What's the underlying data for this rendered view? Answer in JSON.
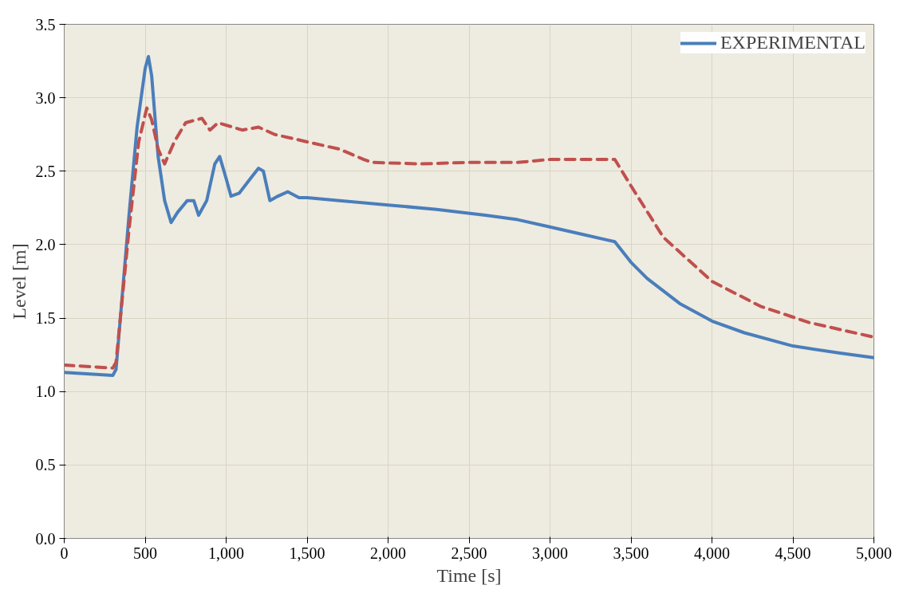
{
  "chart_data": {
    "type": "line",
    "xlabel": "Time [s]",
    "ylabel": "Level [m]",
    "xlim": [
      0,
      5000
    ],
    "xticks": [
      {
        "value": 0,
        "label": "0"
      },
      {
        "value": 500,
        "label": "500"
      },
      {
        "value": 1000,
        "label": "1,000"
      },
      {
        "value": 1500,
        "label": "1,500"
      },
      {
        "value": 2000,
        "label": "2,000"
      },
      {
        "value": 2500,
        "label": "2,500"
      },
      {
        "value": 3000,
        "label": "3,000"
      },
      {
        "value": 3500,
        "label": "3,500"
      },
      {
        "value": 4000,
        "label": "4,000"
      },
      {
        "value": 4500,
        "label": "4,500"
      },
      {
        "value": 5000,
        "label": "5,000"
      }
    ],
    "ylim": [
      0,
      3.5
    ],
    "yticks": [
      {
        "value": 0,
        "label": "0.0"
      },
      {
        "value": 0.5,
        "label": "0.5"
      },
      {
        "value": 1,
        "label": "1.0"
      },
      {
        "value": 1.5,
        "label": "1.5"
      },
      {
        "value": 2,
        "label": "2.0"
      },
      {
        "value": 2.5,
        "label": "2.5"
      },
      {
        "value": 3,
        "label": "3.0"
      },
      {
        "value": 3.5,
        "label": "3.5"
      }
    ],
    "grid": true,
    "legend": "top right",
    "marker": "none",
    "series": [
      {
        "name": "EXPERIMENTAL",
        "color": "#4a7ebb",
        "line_style": "solid",
        "x": [
          0,
          300,
          320,
          400,
          450,
          500,
          520,
          540,
          580,
          620,
          660,
          700,
          760,
          800,
          830,
          880,
          930,
          960,
          1000,
          1030,
          1080,
          1150,
          1200,
          1230,
          1270,
          1320,
          1380,
          1450,
          1500,
          1700,
          2000,
          2300,
          2600,
          2800,
          3000,
          3200,
          3400,
          3500,
          3600,
          3800,
          4000,
          4200,
          4500,
          4800,
          5000
        ],
        "values": [
          1.13,
          1.11,
          1.15,
          2.2,
          2.8,
          3.2,
          3.28,
          3.15,
          2.6,
          2.3,
          2.15,
          2.22,
          2.3,
          2.3,
          2.2,
          2.3,
          2.55,
          2.6,
          2.45,
          2.33,
          2.35,
          2.45,
          2.52,
          2.5,
          2.3,
          2.33,
          2.36,
          2.32,
          2.32,
          2.3,
          2.27,
          2.24,
          2.2,
          2.17,
          2.12,
          2.07,
          2.02,
          1.88,
          1.77,
          1.6,
          1.48,
          1.4,
          1.31,
          1.26,
          1.23
        ]
      },
      {
        "color": "#c0504d",
        "line_style": "dashed",
        "x": [
          0,
          300,
          320,
          400,
          460,
          510,
          540,
          580,
          620,
          680,
          750,
          850,
          900,
          950,
          1100,
          1200,
          1300,
          1500,
          1700,
          1850,
          1900,
          2200,
          2500,
          2800,
          3000,
          3200,
          3400,
          3500,
          3700,
          4000,
          4300,
          4600,
          5000
        ],
        "values": [
          1.18,
          1.16,
          1.2,
          2.1,
          2.7,
          2.93,
          2.85,
          2.65,
          2.55,
          2.7,
          2.83,
          2.86,
          2.78,
          2.83,
          2.78,
          2.8,
          2.75,
          2.7,
          2.65,
          2.58,
          2.56,
          2.55,
          2.56,
          2.56,
          2.58,
          2.58,
          2.58,
          2.4,
          2.05,
          1.75,
          1.58,
          1.47,
          1.37
        ]
      }
    ]
  }
}
